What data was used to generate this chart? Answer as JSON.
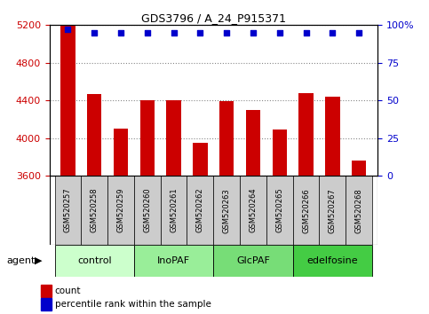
{
  "title": "GDS3796 / A_24_P915371",
  "samples": [
    "GSM520257",
    "GSM520258",
    "GSM520259",
    "GSM520260",
    "GSM520261",
    "GSM520262",
    "GSM520263",
    "GSM520264",
    "GSM520265",
    "GSM520266",
    "GSM520267",
    "GSM520268"
  ],
  "counts": [
    5200,
    4470,
    4100,
    4400,
    4400,
    3950,
    4390,
    4300,
    4090,
    4480,
    4440,
    3760
  ],
  "percentiles": [
    97,
    95,
    95,
    95,
    95,
    95,
    95,
    95,
    95,
    95,
    95,
    95
  ],
  "ylim_left": [
    3600,
    5200
  ],
  "ylim_right": [
    0,
    100
  ],
  "yticks_left": [
    3600,
    4000,
    4400,
    4800,
    5200
  ],
  "yticks_right": [
    0,
    25,
    50,
    75,
    100
  ],
  "bar_color": "#cc0000",
  "dot_color": "#0000cc",
  "groups": [
    {
      "label": "control",
      "start": 0,
      "end": 3,
      "color": "#ccffcc"
    },
    {
      "label": "InoPAF",
      "start": 3,
      "end": 6,
      "color": "#99ee99"
    },
    {
      "label": "GlcPAF",
      "start": 6,
      "end": 9,
      "color": "#77dd77"
    },
    {
      "label": "edelfosine",
      "start": 9,
      "end": 12,
      "color": "#44cc44"
    }
  ],
  "xlabel_agent": "agent",
  "legend_count": "count",
  "legend_percentile": "percentile rank within the sample",
  "grid_color": "#888888",
  "sample_box_color": "#cccccc",
  "tick_label_color_left": "#cc0000",
  "tick_label_color_right": "#0000cc",
  "bar_width": 0.55
}
